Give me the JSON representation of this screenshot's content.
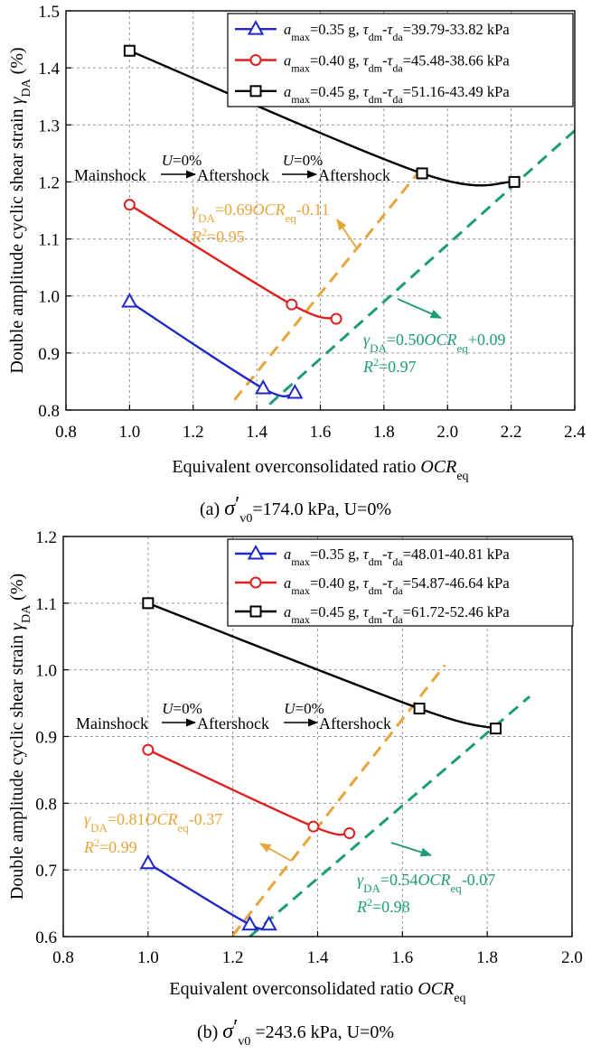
{
  "chart_data": [
    {
      "type": "line",
      "panel": "a",
      "caption": {
        "prefix": "(a)",
        "sigma": "σ",
        "prime": "′",
        "sub": "v0",
        "rest": "=174.0 kPa, U=0%"
      },
      "xlabel": "Equivalent overconsolidated ratio OCReq",
      "xlabel_main": "Equivalent overconsolidated ratio ",
      "xlabel_it": "OCR",
      "xlabel_sub": "eq",
      "ylabel": "Double amplitude cyclic shear strain γDA (%)",
      "ylabel_main": "Double amplitude cyclic shear strain ",
      "ylabel_sym": "γ",
      "ylabel_sub": "DA",
      "ylabel_unit": " (%)",
      "xlim": [
        0.8,
        2.4
      ],
      "ylim": [
        0.8,
        1.5
      ],
      "xticks": [
        "0.8",
        "1.0",
        "1.2",
        "1.4",
        "1.6",
        "1.8",
        "2.0",
        "2.2",
        "2.4"
      ],
      "yticks": [
        "0.8",
        "0.9",
        "1.0",
        "1.1",
        "1.2",
        "1.3",
        "1.4",
        "1.5"
      ],
      "series": [
        {
          "name": "amax=0.35 g, τdm-τda=39.79-33.82 kPa",
          "a": "0.35 g, ",
          "tau": "=39.79-33.82 kPa",
          "color": "#1f27c8",
          "marker": "triangle",
          "x": [
            1.0,
            1.42,
            1.52
          ],
          "y": [
            0.99,
            0.838,
            0.83
          ]
        },
        {
          "name": "amax=0.40 g, τdm-τda=45.48-38.66 kPa",
          "a": "0.40 g, ",
          "tau": "=45.48-38.66 kPa",
          "color": "#e02020",
          "marker": "circle",
          "x": [
            1.0,
            1.51,
            1.65
          ],
          "y": [
            1.16,
            0.985,
            0.96
          ]
        },
        {
          "name": "amax=0.45 g, τdm-τda=51.16-43.49 kPa",
          "a": "0.45 g, ",
          "tau": "=51.16-43.49 kPa",
          "color": "#000000",
          "marker": "square",
          "x": [
            1.0,
            1.92,
            2.21
          ],
          "y": [
            1.43,
            1.215,
            1.2
          ]
        }
      ],
      "fit_lines": [
        {
          "color": "#e8a43a",
          "x": [
            1.33,
            1.93
          ],
          "y": [
            0.8177,
            1.2317
          ],
          "eq": {
            "pre": "=0.69",
            "post": "-0.11"
          },
          "r2": "=0.95"
        },
        {
          "color": "#1e9b78",
          "x": [
            1.44,
            2.4
          ],
          "y": [
            0.81,
            1.29
          ],
          "eq": {
            "pre": "=0.50",
            "post": "+0.09"
          },
          "r2": "=0.97"
        }
      ],
      "sequence": {
        "main": "Mainshock",
        "after1": "Aftershock",
        "after2": "Aftershock",
        "u": "U",
        "u_val": "=0%"
      }
    },
    {
      "type": "line",
      "panel": "b",
      "caption": {
        "prefix": "(b)",
        "sigma": "σ",
        "prime": "′",
        "sub": "v0",
        "rest": " =243.6 kPa, U=0%"
      },
      "xlabel": "Equivalent overconsolidated ratio OCReq",
      "xlabel_main": "Equivalent overconsolidated ratio ",
      "xlabel_it": "OCR",
      "xlabel_sub": "eq",
      "ylabel": "Double amplitude cyclic shear strain γDA (%)",
      "ylabel_main": "Double amplitude cyclic shear strain ",
      "ylabel_sym": "γ",
      "ylabel_sub": "DA",
      "ylabel_unit": " (%)",
      "xlim": [
        0.8,
        2.0
      ],
      "ylim": [
        0.6,
        1.2
      ],
      "xticks": [
        "0.8",
        "1.0",
        "1.2",
        "1.4",
        "1.6",
        "1.8",
        "2.0"
      ],
      "yticks": [
        "0.6",
        "0.7",
        "0.8",
        "0.9",
        "1.0",
        "1.1",
        "1.2"
      ],
      "series": [
        {
          "name": "amax=0.35 g, τdm-τda=48.01-40.81 kPa",
          "a": "0.35 g, ",
          "tau": "=48.01-40.81 kPa",
          "color": "#1f27c8",
          "marker": "triangle",
          "x": [
            1.0,
            1.24,
            1.285
          ],
          "y": [
            0.71,
            0.618,
            0.618
          ]
        },
        {
          "name": "amax=0.40 g, τdm-τda=54.87-46.64 kPa",
          "a": "0.40 g, ",
          "tau": "=54.87-46.64 kPa",
          "color": "#e02020",
          "marker": "circle",
          "x": [
            1.0,
            1.39,
            1.475
          ],
          "y": [
            0.88,
            0.765,
            0.755
          ]
        },
        {
          "name": "amax=0.45 g, τdm-τda=61.72-52.46 kPa",
          "a": "0.45 g, ",
          "tau": "=61.72-52.46 kPa",
          "color": "#000000",
          "marker": "square",
          "x": [
            1.0,
            1.64,
            1.82
          ],
          "y": [
            1.1,
            0.942,
            0.912
          ]
        }
      ],
      "fit_lines": [
        {
          "color": "#e8a43a",
          "x": [
            1.2,
            1.7
          ],
          "y": [
            0.602,
            1.007
          ],
          "eq": {
            "pre": "=0.81",
            "post": "-0.37"
          },
          "r2": "=0.99"
        },
        {
          "color": "#1e9b78",
          "x": [
            1.24,
            1.9
          ],
          "y": [
            0.6,
            0.96
          ],
          "eq": {
            "pre": "=0.54",
            "post": "-0.07"
          },
          "r2": "=0.98"
        }
      ],
      "sequence": {
        "main": "Mainshock",
        "after1": "Aftershock",
        "after2": "Aftershock",
        "u": "U",
        "u_val": "=0%"
      }
    }
  ]
}
